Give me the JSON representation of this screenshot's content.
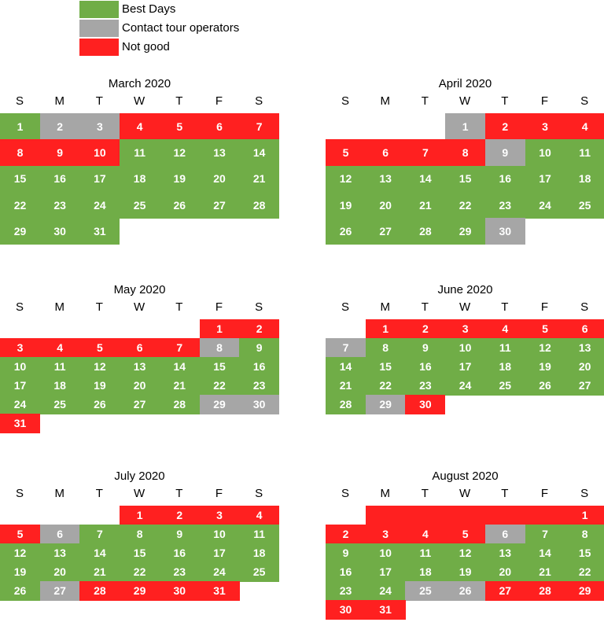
{
  "colors": {
    "green": "#70ad47",
    "gray": "#a6a6a6",
    "red": "#ff2020"
  },
  "legend": [
    {
      "label": "Best Days",
      "color": "green"
    },
    {
      "label": "Contact tour operators",
      "color": "gray"
    },
    {
      "label": "Not good",
      "color": "red"
    }
  ],
  "weekdays": [
    "S",
    "M",
    "T",
    "W",
    "T",
    "F",
    "S"
  ],
  "months": [
    {
      "title": "March 2020",
      "weeks": [
        [
          [
            "1",
            "green"
          ],
          [
            "2",
            "gray"
          ],
          [
            "3",
            "gray"
          ],
          [
            "4",
            "red"
          ],
          [
            "5",
            "red"
          ],
          [
            "6",
            "red"
          ],
          [
            "7",
            "red"
          ]
        ],
        [
          [
            "8",
            "red"
          ],
          [
            "9",
            "red"
          ],
          [
            "10",
            "red"
          ],
          [
            "11",
            "green"
          ],
          [
            "12",
            "green"
          ],
          [
            "13",
            "green"
          ],
          [
            "14",
            "green"
          ]
        ],
        [
          [
            "15",
            "green"
          ],
          [
            "16",
            "green"
          ],
          [
            "17",
            "green"
          ],
          [
            "18",
            "green"
          ],
          [
            "19",
            "green"
          ],
          [
            "20",
            "green"
          ],
          [
            "21",
            "green"
          ]
        ],
        [
          [
            "22",
            "green"
          ],
          [
            "23",
            "green"
          ],
          [
            "24",
            "green"
          ],
          [
            "25",
            "green"
          ],
          [
            "26",
            "green"
          ],
          [
            "27",
            "green"
          ],
          [
            "28",
            "green"
          ]
        ],
        [
          [
            "29",
            "green"
          ],
          [
            "30",
            "green"
          ],
          [
            "31",
            "green"
          ],
          null,
          null,
          null,
          null
        ]
      ]
    },
    {
      "title": "April 2020",
      "weeks": [
        [
          null,
          null,
          null,
          [
            "1",
            "gray"
          ],
          [
            "2",
            "red"
          ],
          [
            "3",
            "red"
          ],
          [
            "4",
            "red"
          ]
        ],
        [
          [
            "5",
            "red"
          ],
          [
            "6",
            "red"
          ],
          [
            "7",
            "red"
          ],
          [
            "8",
            "red"
          ],
          [
            "9",
            "gray"
          ],
          [
            "10",
            "green"
          ],
          [
            "11",
            "green"
          ]
        ],
        [
          [
            "12",
            "green"
          ],
          [
            "13",
            "green"
          ],
          [
            "14",
            "green"
          ],
          [
            "15",
            "green"
          ],
          [
            "16",
            "green"
          ],
          [
            "17",
            "green"
          ],
          [
            "18",
            "green"
          ]
        ],
        [
          [
            "19",
            "green"
          ],
          [
            "20",
            "green"
          ],
          [
            "21",
            "green"
          ],
          [
            "22",
            "green"
          ],
          [
            "23",
            "green"
          ],
          [
            "24",
            "green"
          ],
          [
            "25",
            "green"
          ]
        ],
        [
          [
            "26",
            "green"
          ],
          [
            "27",
            "green"
          ],
          [
            "28",
            "green"
          ],
          [
            "29",
            "green"
          ],
          [
            "30",
            "gray"
          ],
          null,
          null
        ]
      ]
    },
    {
      "title": "May 2020",
      "weeks": [
        [
          null,
          null,
          null,
          null,
          null,
          [
            "1",
            "red"
          ],
          [
            "2",
            "red"
          ]
        ],
        [
          [
            "3",
            "red"
          ],
          [
            "4",
            "red"
          ],
          [
            "5",
            "red"
          ],
          [
            "6",
            "red"
          ],
          [
            "7",
            "red"
          ],
          [
            "8",
            "gray"
          ],
          [
            "9",
            "green"
          ]
        ],
        [
          [
            "10",
            "green"
          ],
          [
            "11",
            "green"
          ],
          [
            "12",
            "green"
          ],
          [
            "13",
            "green"
          ],
          [
            "14",
            "green"
          ],
          [
            "15",
            "green"
          ],
          [
            "16",
            "green"
          ]
        ],
        [
          [
            "17",
            "green"
          ],
          [
            "18",
            "green"
          ],
          [
            "19",
            "green"
          ],
          [
            "20",
            "green"
          ],
          [
            "21",
            "green"
          ],
          [
            "22",
            "green"
          ],
          [
            "23",
            "green"
          ]
        ],
        [
          [
            "24",
            "green"
          ],
          [
            "25",
            "green"
          ],
          [
            "26",
            "green"
          ],
          [
            "27",
            "green"
          ],
          [
            "28",
            "green"
          ],
          [
            "29",
            "gray"
          ],
          [
            "30",
            "gray"
          ]
        ],
        [
          [
            "31",
            "red"
          ],
          null,
          null,
          null,
          null,
          null,
          null
        ]
      ]
    },
    {
      "title": "June 2020",
      "weeks": [
        [
          null,
          [
            "1",
            "red"
          ],
          [
            "2",
            "red"
          ],
          [
            "3",
            "red"
          ],
          [
            "4",
            "red"
          ],
          [
            "5",
            "red"
          ],
          [
            "6",
            "red"
          ]
        ],
        [
          [
            "7",
            "gray"
          ],
          [
            "8",
            "green"
          ],
          [
            "9",
            "green"
          ],
          [
            "10",
            "green"
          ],
          [
            "11",
            "green"
          ],
          [
            "12",
            "green"
          ],
          [
            "13",
            "green"
          ]
        ],
        [
          [
            "14",
            "green"
          ],
          [
            "15",
            "green"
          ],
          [
            "16",
            "green"
          ],
          [
            "17",
            "green"
          ],
          [
            "18",
            "green"
          ],
          [
            "19",
            "green"
          ],
          [
            "20",
            "green"
          ]
        ],
        [
          [
            "21",
            "green"
          ],
          [
            "22",
            "green"
          ],
          [
            "23",
            "green"
          ],
          [
            "24",
            "green"
          ],
          [
            "25",
            "green"
          ],
          [
            "26",
            "green"
          ],
          [
            "27",
            "green"
          ]
        ],
        [
          [
            "28",
            "green"
          ],
          [
            "29",
            "gray"
          ],
          [
            "30",
            "red"
          ],
          null,
          null,
          null,
          null
        ]
      ]
    },
    {
      "title": "July 2020",
      "weeks": [
        [
          null,
          null,
          null,
          [
            "1",
            "red"
          ],
          [
            "2",
            "red"
          ],
          [
            "3",
            "red"
          ],
          [
            "4",
            "red"
          ]
        ],
        [
          [
            "5",
            "red"
          ],
          [
            "6",
            "gray"
          ],
          [
            "7",
            "green"
          ],
          [
            "8",
            "green"
          ],
          [
            "9",
            "green"
          ],
          [
            "10",
            "green"
          ],
          [
            "11",
            "green"
          ]
        ],
        [
          [
            "12",
            "green"
          ],
          [
            "13",
            "green"
          ],
          [
            "14",
            "green"
          ],
          [
            "15",
            "green"
          ],
          [
            "16",
            "green"
          ],
          [
            "17",
            "green"
          ],
          [
            "18",
            "green"
          ]
        ],
        [
          [
            "19",
            "green"
          ],
          [
            "20",
            "green"
          ],
          [
            "21",
            "green"
          ],
          [
            "22",
            "green"
          ],
          [
            "23",
            "green"
          ],
          [
            "24",
            "green"
          ],
          [
            "25",
            "green"
          ]
        ],
        [
          [
            "26",
            "green"
          ],
          [
            "27",
            "gray"
          ],
          [
            "28",
            "red"
          ],
          [
            "29",
            "red"
          ],
          [
            "30",
            "red"
          ],
          [
            "31",
            "red"
          ],
          null
        ]
      ]
    },
    {
      "title": "August 2020",
      "weeks": [
        [
          null,
          [
            "",
            "red"
          ],
          [
            "",
            "red"
          ],
          [
            "",
            "red"
          ],
          [
            "",
            "red"
          ],
          [
            "",
            "red"
          ],
          [
            "1",
            "red"
          ]
        ],
        [
          [
            "2",
            "red"
          ],
          [
            "3",
            "red"
          ],
          [
            "4",
            "red"
          ],
          [
            "5",
            "red"
          ],
          [
            "6",
            "gray"
          ],
          [
            "7",
            "green"
          ],
          [
            "8",
            "green"
          ]
        ],
        [
          [
            "9",
            "green"
          ],
          [
            "10",
            "green"
          ],
          [
            "11",
            "green"
          ],
          [
            "12",
            "green"
          ],
          [
            "13",
            "green"
          ],
          [
            "14",
            "green"
          ],
          [
            "15",
            "green"
          ]
        ],
        [
          [
            "16",
            "green"
          ],
          [
            "17",
            "green"
          ],
          [
            "18",
            "green"
          ],
          [
            "19",
            "green"
          ],
          [
            "20",
            "green"
          ],
          [
            "21",
            "green"
          ],
          [
            "22",
            "green"
          ]
        ],
        [
          [
            "23",
            "green"
          ],
          [
            "24",
            "green"
          ],
          [
            "25",
            "gray"
          ],
          [
            "26",
            "gray"
          ],
          [
            "27",
            "red"
          ],
          [
            "28",
            "red"
          ],
          [
            "29",
            "red"
          ]
        ],
        [
          [
            "30",
            "red"
          ],
          [
            "31",
            "red"
          ],
          null,
          null,
          null,
          null,
          null
        ]
      ]
    }
  ]
}
